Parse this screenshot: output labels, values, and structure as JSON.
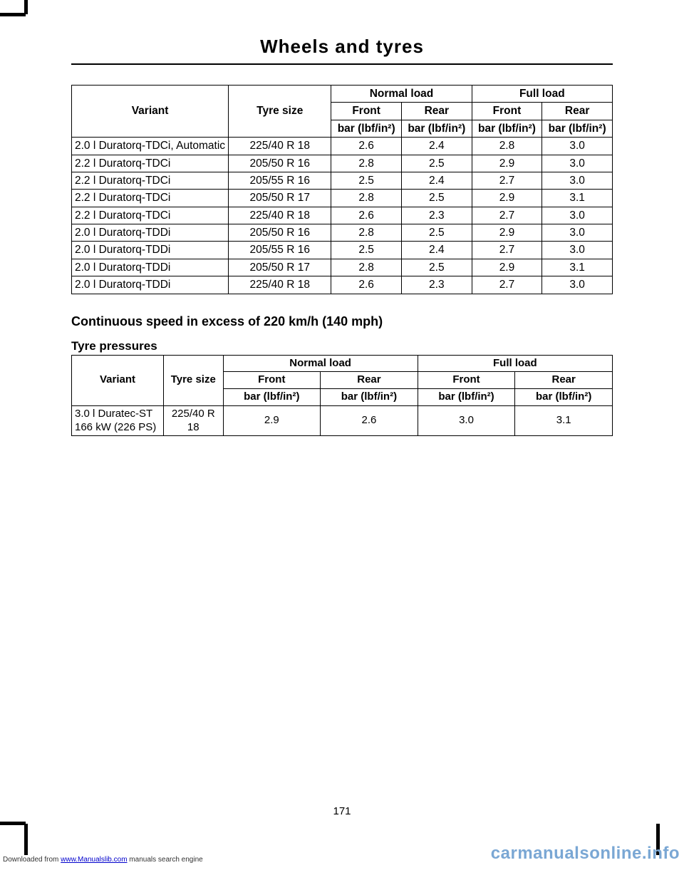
{
  "page": {
    "title": "Wheels and tyres",
    "number": "171"
  },
  "table1": {
    "headers": {
      "variant": "Variant",
      "tyreSize": "Tyre size",
      "normalLoad": "Normal load",
      "fullLoad": "Full load",
      "front": "Front",
      "rear": "Rear",
      "unit": "bar (lbf/in²)"
    },
    "rows": [
      {
        "variant": "2.0 l Duratorq-TDCi, Automatic",
        "tyre": "225/40 R 18",
        "nf": "2.6",
        "nr": "2.4",
        "ff": "2.8",
        "fr": "3.0"
      },
      {
        "variant": "2.2 l Duratorq-TDCi",
        "tyre": "205/50 R 16",
        "nf": "2.8",
        "nr": "2.5",
        "ff": "2.9",
        "fr": "3.0"
      },
      {
        "variant": "2.2 l Duratorq-TDCi",
        "tyre": "205/55 R 16",
        "nf": "2.5",
        "nr": "2.4",
        "ff": "2.7",
        "fr": "3.0"
      },
      {
        "variant": "2.2 l Duratorq-TDCi",
        "tyre": "205/50 R 17",
        "nf": "2.8",
        "nr": "2.5",
        "ff": "2.9",
        "fr": "3.1"
      },
      {
        "variant": "2.2 l Duratorq-TDCi",
        "tyre": "225/40 R 18",
        "nf": "2.6",
        "nr": "2.3",
        "ff": "2.7",
        "fr": "3.0"
      },
      {
        "variant": "2.0 l Duratorq-TDDi",
        "tyre": "205/50 R 16",
        "nf": "2.8",
        "nr": "2.5",
        "ff": "2.9",
        "fr": "3.0"
      },
      {
        "variant": "2.0 l Duratorq-TDDi",
        "tyre": "205/55 R 16",
        "nf": "2.5",
        "nr": "2.4",
        "ff": "2.7",
        "fr": "3.0"
      },
      {
        "variant": "2.0 l Duratorq-TDDi",
        "tyre": "205/50 R 17",
        "nf": "2.8",
        "nr": "2.5",
        "ff": "2.9",
        "fr": "3.1"
      },
      {
        "variant": "2.0 l Duratorq-TDDi",
        "tyre": "225/40 R 18",
        "nf": "2.6",
        "nr": "2.3",
        "ff": "2.7",
        "fr": "3.0"
      }
    ]
  },
  "section": {
    "heading": "Continuous speed in excess of 220 km/h (140 mph)",
    "subheading": "Tyre pressures"
  },
  "table2": {
    "headers": {
      "variant": "Variant",
      "tyreSize": "Tyre size",
      "normalLoad": "Normal load",
      "fullLoad": "Full load",
      "front": "Front",
      "rear": "Rear",
      "unit": "bar (lbf/in²)"
    },
    "row": {
      "variant": "3.0 l Duratec-ST 166 kW (226 PS)",
      "tyre": "225/40 R 18",
      "nf": "2.9",
      "nr": "2.6",
      "ff": "3.0",
      "fr": "3.1"
    }
  },
  "footer": {
    "prefix": "Downloaded from ",
    "link": "www.Manualslib.com",
    "suffix": " manuals search engine"
  },
  "watermark": "carmanualsonline.info"
}
